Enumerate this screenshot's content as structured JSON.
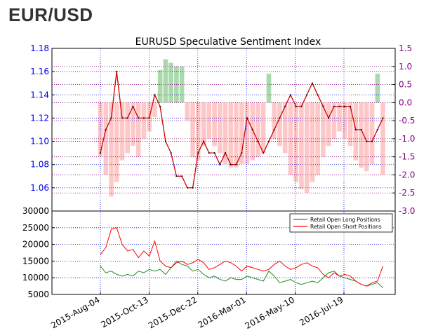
{
  "heading": "EUR/USD",
  "colors": {
    "left_axis": "#0000ee",
    "right_axis": "#7f007f",
    "net_long": "#2ca02c",
    "net_short": "#ff9a9a",
    "price_line": "#cc0000",
    "long_positions": "#228b22",
    "short_positions": "#ff0000"
  },
  "chart_data": [
    {
      "type": "line",
      "title": "EURUSD Speculative Sentiment Index",
      "ylim_left": [
        1.04,
        1.18
      ],
      "ylim_right": [
        -3.0,
        1.5
      ],
      "yticks_left": [
        "1.18",
        "1.16",
        "1.14",
        "1.12",
        "1.10",
        "1.08",
        "1.06"
      ],
      "yticks_right": [
        "1.5",
        "1.0",
        "0.5",
        "0.0",
        "-0.5",
        "-1.0",
        "-1.5",
        "-2.0",
        "-2.5",
        "-3.0"
      ],
      "xticks": [
        "2015-Aug-04",
        "2015-Oct-13",
        "2015-Dec-22",
        "2016-Mar-01",
        "2016-May-10",
        "2016-Jul-19"
      ],
      "grid": true,
      "series": [
        {
          "kind": "price",
          "x": [
            "2015-Aug-04",
            "2015-Aug-11",
            "2015-Aug-18",
            "2015-Aug-25",
            "2015-Sep-01",
            "2015-Sep-08",
            "2015-Sep-15",
            "2015-Sep-22",
            "2015-Sep-29",
            "2015-Oct-06",
            "2015-Oct-13",
            "2015-Oct-20",
            "2015-Oct-27",
            "2015-Nov-03",
            "2015-Nov-10",
            "2015-Nov-17",
            "2015-Nov-24",
            "2015-Dec-01",
            "2015-Dec-08",
            "2015-Dec-15",
            "2015-Dec-22",
            "2015-Dec-29",
            "2016-Jan-05",
            "2016-Jan-12",
            "2016-Jan-19",
            "2016-Jan-26",
            "2016-Feb-02",
            "2016-Feb-09",
            "2016-Feb-16",
            "2016-Feb-23",
            "2016-Mar-01",
            "2016-Mar-08",
            "2016-Mar-15",
            "2016-Mar-22",
            "2016-Mar-29",
            "2016-Apr-05",
            "2016-Apr-12",
            "2016-Apr-19",
            "2016-Apr-26",
            "2016-May-03",
            "2016-May-10",
            "2016-May-17",
            "2016-May-24",
            "2016-May-31",
            "2016-Jun-07",
            "2016-Jun-14",
            "2016-Jun-21",
            "2016-Jun-28",
            "2016-Jul-05",
            "2016-Jul-12",
            "2016-Jul-19",
            "2016-Jul-26",
            "2016-Aug-02"
          ],
          "values": [
            1.09,
            1.11,
            1.12,
            1.16,
            1.12,
            1.12,
            1.13,
            1.12,
            1.12,
            1.12,
            1.14,
            1.13,
            1.1,
            1.09,
            1.07,
            1.07,
            1.06,
            1.06,
            1.09,
            1.1,
            1.09,
            1.09,
            1.08,
            1.09,
            1.08,
            1.08,
            1.09,
            1.12,
            1.11,
            1.1,
            1.09,
            1.1,
            1.11,
            1.12,
            1.13,
            1.14,
            1.13,
            1.13,
            1.14,
            1.15,
            1.14,
            1.13,
            1.12,
            1.13,
            1.13,
            1.13,
            1.13,
            1.11,
            1.11,
            1.1,
            1.1,
            1.11,
            1.12
          ]
        },
        {
          "kind": "ssi",
          "x": [
            "2015-Aug-04",
            "2015-Aug-11",
            "2015-Aug-18",
            "2015-Aug-25",
            "2015-Sep-01",
            "2015-Sep-08",
            "2015-Sep-15",
            "2015-Sep-22",
            "2015-Sep-29",
            "2015-Oct-06",
            "2015-Oct-13",
            "2015-Oct-20",
            "2015-Oct-27",
            "2015-Nov-03",
            "2015-Nov-10",
            "2015-Nov-17",
            "2015-Nov-24",
            "2015-Dec-01",
            "2015-Dec-08",
            "2015-Dec-15",
            "2015-Dec-22",
            "2015-Dec-29",
            "2016-Jan-05",
            "2016-Jan-12",
            "2016-Jan-19",
            "2016-Jan-26",
            "2016-Feb-02",
            "2016-Feb-09",
            "2016-Feb-16",
            "2016-Feb-23",
            "2016-Mar-01",
            "2016-Mar-08",
            "2016-Mar-15",
            "2016-Mar-22",
            "2016-Mar-29",
            "2016-Apr-05",
            "2016-Apr-12",
            "2016-Apr-19",
            "2016-Apr-26",
            "2016-May-03",
            "2016-May-10",
            "2016-May-17",
            "2016-May-24",
            "2016-May-31",
            "2016-Jun-07",
            "2016-Jun-14",
            "2016-Jun-21",
            "2016-Jun-28",
            "2016-Jul-05",
            "2016-Jul-12",
            "2016-Jul-19",
            "2016-Jul-26",
            "2016-Aug-02"
          ],
          "values": [
            -1.5,
            -2.0,
            -2.6,
            -2.2,
            -1.6,
            -1.4,
            -1.2,
            -1.5,
            -1.0,
            -0.8,
            -0.4,
            0.9,
            1.2,
            1.1,
            1.0,
            1.0,
            -0.5,
            -1.5,
            -1.6,
            -1.2,
            -1.0,
            -1.2,
            -1.4,
            -1.7,
            -1.8,
            -1.8,
            -1.7,
            -1.7,
            -1.6,
            -1.5,
            -1.4,
            0.8,
            -1.0,
            -1.2,
            -1.4,
            -2.0,
            -2.2,
            -2.4,
            -2.5,
            -2.2,
            -2.0,
            -1.5,
            -1.2,
            -1.0,
            -0.8,
            -1.0,
            -1.2,
            -1.6,
            -1.8,
            -1.9,
            -1.7,
            0.8,
            -2.0
          ]
        }
      ]
    },
    {
      "type": "line",
      "ylim": [
        5000,
        30000
      ],
      "yticks": [
        "30000",
        "25000",
        "20000",
        "15000",
        "10000",
        "5000"
      ],
      "grid": true,
      "legend_position": "top-right",
      "series": [
        {
          "name": "Retail Open Long Positions",
          "values": [
            13500,
            11500,
            12000,
            11000,
            10500,
            11000,
            10500,
            12000,
            11500,
            12500,
            12000,
            12500,
            11000,
            13000,
            15000,
            14000,
            13500,
            12000,
            12500,
            11000,
            10000,
            10500,
            9500,
            9000,
            10000,
            9500,
            9500,
            10500,
            10000,
            9500,
            9000,
            12000,
            10500,
            8500,
            9000,
            9500,
            8500,
            8000,
            8500,
            9000,
            8500,
            10000,
            11500,
            12000,
            10500,
            10000,
            9500,
            9000,
            8000,
            7500,
            8000,
            8500,
            7000
          ]
        },
        {
          "name": "Retail Open Short Positions",
          "values": [
            17000,
            19000,
            24500,
            25000,
            20000,
            18000,
            18500,
            16000,
            18000,
            16500,
            21000,
            15000,
            13500,
            13000,
            14500,
            15000,
            14000,
            14500,
            15500,
            14500,
            12500,
            13000,
            14000,
            15000,
            14500,
            13500,
            12000,
            13500,
            13000,
            12500,
            12000,
            12500,
            14000,
            15000,
            13500,
            12500,
            13000,
            14000,
            14500,
            13500,
            13000,
            11000,
            10000,
            11500,
            10500,
            11000,
            10500,
            9000,
            8000,
            7500,
            8500,
            9000,
            13500
          ]
        }
      ]
    }
  ]
}
